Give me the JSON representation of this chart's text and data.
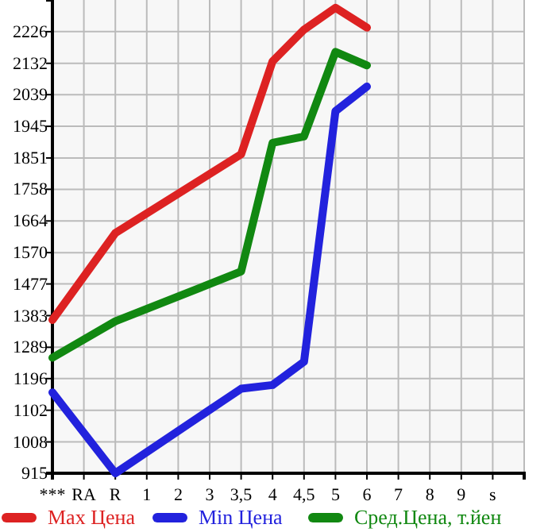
{
  "chart_data": {
    "type": "line",
    "categories": [
      "***",
      "RA",
      "R",
      "1",
      "2",
      "3",
      "3,5",
      "4",
      "4,5",
      "5",
      "6",
      "7",
      "8",
      "9",
      "s"
    ],
    "ylim": [
      915,
      2320
    ],
    "yticks": [
      915,
      1008,
      1102,
      1196,
      1289,
      1383,
      1477,
      1570,
      1664,
      1758,
      1851,
      1945,
      2039,
      2132,
      2226
    ],
    "grid": true,
    "legend": "bottom",
    "line_style": "solid",
    "marker": "none",
    "series": [
      {
        "name": "Max Цена",
        "color": "#dd2222",
        "values": [
          1370,
          null,
          1628,
          null,
          null,
          null,
          1862,
          2138,
          2232,
          2297,
          2238,
          null,
          null,
          null,
          null
        ]
      },
      {
        "name": "Min Цена",
        "color": "#2222dd",
        "values": [
          1155,
          null,
          915,
          null,
          null,
          null,
          1166,
          1177,
          1246,
          1990,
          2063,
          null,
          null,
          null,
          null
        ]
      },
      {
        "name": "Сред.Цена, т.йен",
        "color": "#118811",
        "values": [
          1258,
          null,
          1366,
          null,
          null,
          null,
          1514,
          1896,
          1915,
          2166,
          2126,
          null,
          null,
          null,
          null
        ]
      }
    ]
  }
}
